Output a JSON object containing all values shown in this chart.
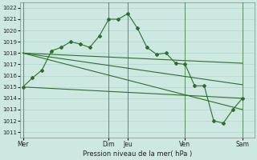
{
  "bg_color": "#cce8e0",
  "grid_color": "#b0d8d0",
  "line_color": "#2d6e2d",
  "ylim": [
    1010.5,
    1022.5
  ],
  "yticks": [
    1011,
    1012,
    1013,
    1014,
    1015,
    1016,
    1017,
    1018,
    1019,
    1020,
    1021,
    1022
  ],
  "xlabel": "Pression niveau de la mer( hPa )",
  "day_labels": [
    "Mer",
    "Dim",
    "Jeu",
    "Ven",
    "Sam"
  ],
  "day_positions": [
    0,
    9,
    11,
    17,
    23
  ],
  "xlim": [
    -0.3,
    24.3
  ],
  "vline_positions": [
    0,
    9,
    11,
    17,
    23
  ],
  "series1_x": [
    0,
    1,
    2,
    3,
    4,
    5,
    6,
    7,
    8,
    9,
    10,
    11,
    12,
    13,
    14,
    15,
    16,
    17,
    18,
    19,
    20,
    21,
    22,
    23
  ],
  "series1_y": [
    1015.0,
    1015.8,
    1016.5,
    1018.2,
    1018.5,
    1019.0,
    1018.8,
    1018.5,
    1019.5,
    1021.0,
    1021.0,
    1021.5,
    1020.2,
    1018.5,
    1017.9,
    1018.0,
    1017.1,
    1017.0,
    1015.1,
    1015.1,
    1012.0,
    1011.8,
    1013.0,
    1014.0
  ],
  "series2_x": [
    0,
    23
  ],
  "series2_y": [
    1018.0,
    1017.1
  ],
  "series3_x": [
    0,
    23
  ],
  "series3_y": [
    1018.0,
    1015.2
  ],
  "series4_x": [
    0,
    23
  ],
  "series4_y": [
    1018.0,
    1013.0
  ],
  "series5_x": [
    0,
    23
  ],
  "series5_y": [
    1015.0,
    1014.0
  ],
  "figw": 3.2,
  "figh": 2.0,
  "dpi": 100
}
